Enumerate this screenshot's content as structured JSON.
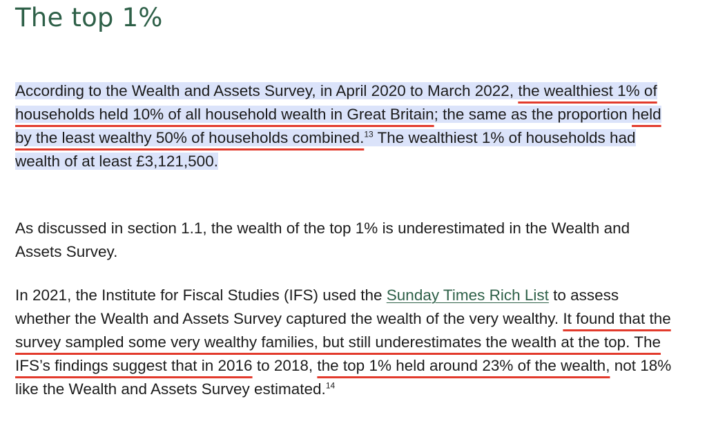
{
  "heading": "The top 1%",
  "p1": {
    "a": "According to the Wealth and Assets Survey, in April 2020 to March 2022, ",
    "b": "the wealthiest 1% of households held 10% of all household wealth in Great Britain",
    "c": "; the same as the proportion ",
    "d": "held by the least wealthy 50% of households combined.",
    "sup": "13",
    "e": " The wealthiest 1% of households had wealth of at least £3,121,500."
  },
  "p2": {
    "text": "As discussed in section 1.1, the wealth of the top 1% is underestimated in the Wealth and Assets Survey."
  },
  "p3": {
    "a": "In 2021, the Institute for Fiscal Studies (IFS) used the ",
    "link": "Sunday Times Rich List",
    "b": " to assess whether the Wealth and Assets Survey captured the wealth of the very wealthy. ",
    "c": "It found that the survey sampled some very wealthy families, but still underestimates the wealth at the top. The IFS’s findings suggest that in 2016",
    "d": " to 2018, ",
    "e": "the top 1% held around 23% of the wealth,",
    "f": " not 18% like the Wealth and Assets Survey estimated.",
    "sup": "14"
  },
  "colors": {
    "heading": "#2e6048",
    "link": "#2e6048",
    "underline": "#e23a2c",
    "highlight": "#dbe3fa"
  }
}
